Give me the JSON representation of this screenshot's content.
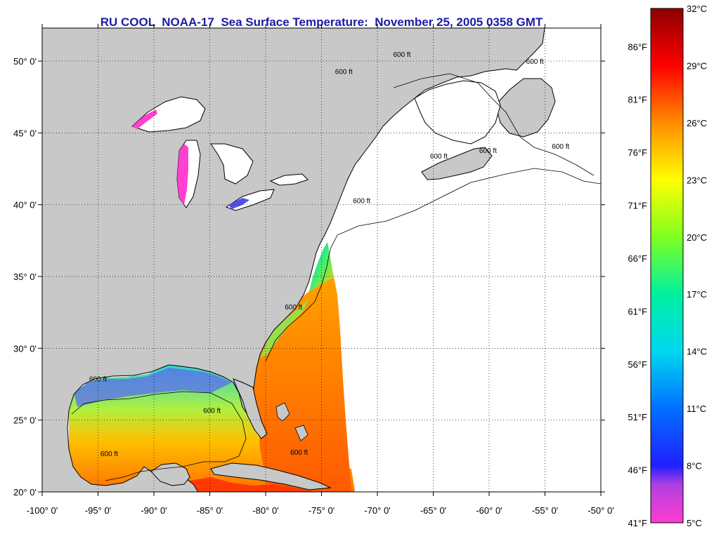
{
  "title": "RU COOL  NOAA-17  Sea Surface Temperature:  November 25, 2005 0358 GMT",
  "map": {
    "lon_range": [
      -100,
      -50
    ],
    "lat_range": [
      20,
      52.3
    ],
    "lon_ticks": [
      {
        "value": -100,
        "label": "-100° 0'"
      },
      {
        "value": -95,
        "label": "-95° 0'"
      },
      {
        "value": -90,
        "label": "-90° 0'"
      },
      {
        "value": -85,
        "label": "-85° 0'"
      },
      {
        "value": -80,
        "label": "-80° 0'"
      },
      {
        "value": -75,
        "label": "-75° 0'"
      },
      {
        "value": -70,
        "label": "-70° 0'"
      },
      {
        "value": -65,
        "label": "-65° 0'"
      },
      {
        "value": -60,
        "label": "-60° 0'"
      },
      {
        "value": -55,
        "label": "-55° 0'"
      },
      {
        "value": -50,
        "label": "-50° 0'"
      }
    ],
    "lat_ticks": [
      {
        "value": 20,
        "label": "20° 0'"
      },
      {
        "value": 25,
        "label": "25° 0'"
      },
      {
        "value": 30,
        "label": "30° 0'"
      },
      {
        "value": 35,
        "label": "35° 0'"
      },
      {
        "value": 40,
        "label": "40° 0'"
      },
      {
        "value": 45,
        "label": "45° 0'"
      },
      {
        "value": 50,
        "label": "50° 0'"
      }
    ],
    "grid": "dotted",
    "land_color": "#c8c8c8",
    "no_data_color": "#ffffff",
    "isobath_label": "600 ft",
    "isobath_labels": [
      {
        "lon": -95.0,
        "lat": 27.7
      },
      {
        "lon": -84.8,
        "lat": 25.5
      },
      {
        "lon": -94.0,
        "lat": 22.5
      },
      {
        "lon": -77.5,
        "lat": 32.7
      },
      {
        "lon": -77.0,
        "lat": 22.6
      },
      {
        "lon": -71.4,
        "lat": 40.1
      },
      {
        "lon": -64.5,
        "lat": 43.2
      },
      {
        "lon": -60.1,
        "lat": 43.6
      },
      {
        "lon": -53.6,
        "lat": 43.9
      },
      {
        "lon": -73.0,
        "lat": 49.1
      },
      {
        "lon": -67.8,
        "lat": 50.3
      },
      {
        "lon": -55.9,
        "lat": 49.8
      }
    ]
  },
  "colorbar": {
    "min_c": 5,
    "max_c": 32,
    "celsius_labels": [
      {
        "value": 32,
        "label": "32°C"
      },
      {
        "value": 29,
        "label": "29°C"
      },
      {
        "value": 26,
        "label": "26°C"
      },
      {
        "value": 23,
        "label": "23°C"
      },
      {
        "value": 20,
        "label": "20°C"
      },
      {
        "value": 17,
        "label": "17°C"
      },
      {
        "value": 14,
        "label": "14°C"
      },
      {
        "value": 11,
        "label": "11°C"
      },
      {
        "value": 8,
        "label": "8°C"
      },
      {
        "value": 5,
        "label": "5°C"
      }
    ],
    "fahrenheit_labels": [
      {
        "value": 86,
        "label": "86°F"
      },
      {
        "value": 81,
        "label": "81°F"
      },
      {
        "value": 76,
        "label": "76°F"
      },
      {
        "value": 71,
        "label": "71°F"
      },
      {
        "value": 66,
        "label": "66°F"
      },
      {
        "value": 61,
        "label": "61°F"
      },
      {
        "value": 56,
        "label": "56°F"
      },
      {
        "value": 51,
        "label": "51°F"
      },
      {
        "value": 46,
        "label": "46°F"
      },
      {
        "value": 41,
        "label": "41°F"
      }
    ],
    "stops": [
      {
        "c": 5,
        "color": "#ff3cd0"
      },
      {
        "c": 7,
        "color": "#b040e0"
      },
      {
        "c": 8,
        "color": "#2020ff"
      },
      {
        "c": 11,
        "color": "#0070ff"
      },
      {
        "c": 14,
        "color": "#00d8f0"
      },
      {
        "c": 17,
        "color": "#00f0a0"
      },
      {
        "c": 20,
        "color": "#80ff20"
      },
      {
        "c": 23,
        "color": "#ffff00"
      },
      {
        "c": 26,
        "color": "#ff8c00"
      },
      {
        "c": 29,
        "color": "#ff0000"
      },
      {
        "c": 32,
        "color": "#8c0000"
      }
    ]
  }
}
